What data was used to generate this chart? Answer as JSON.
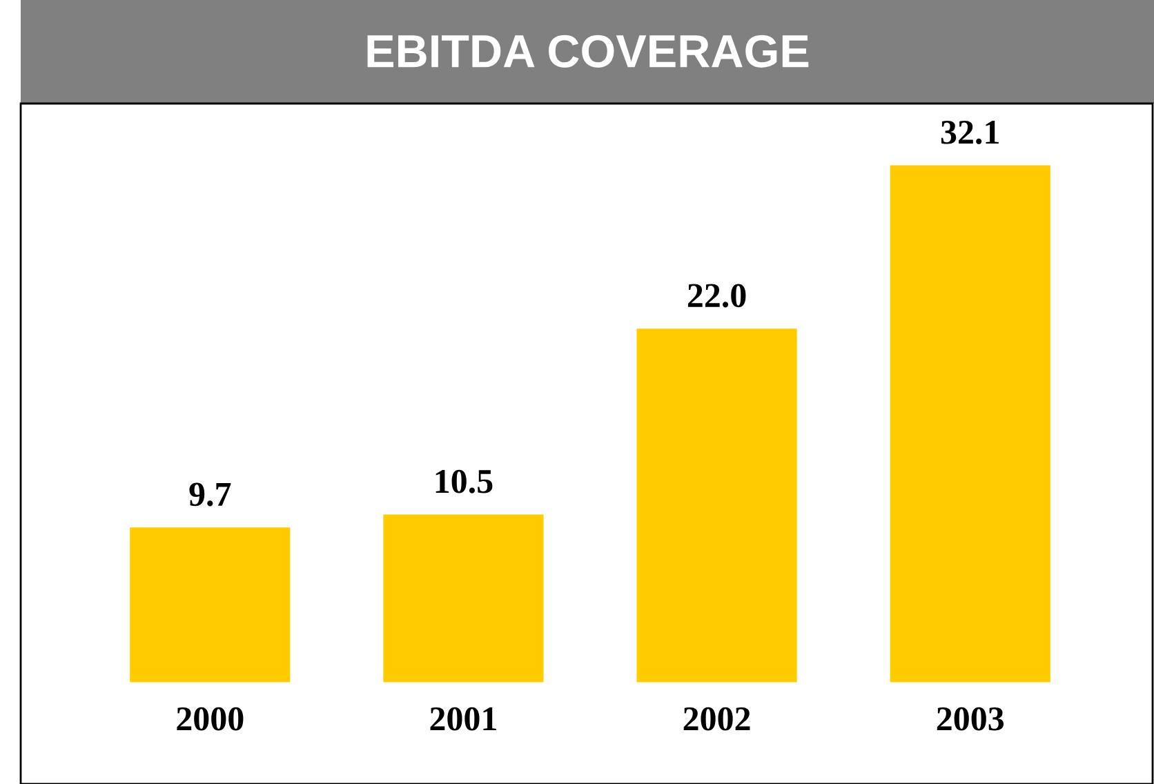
{
  "chart_data": {
    "type": "bar",
    "title": "EBITDA COVERAGE",
    "categories": [
      "2000",
      "2001",
      "2002",
      "2003"
    ],
    "values": [
      9.7,
      10.5,
      22.0,
      32.1
    ],
    "value_labels": [
      "9.7",
      "10.5",
      "22.0",
      "32.1"
    ],
    "color": "#ffcc00",
    "grid": false,
    "legend": false
  }
}
